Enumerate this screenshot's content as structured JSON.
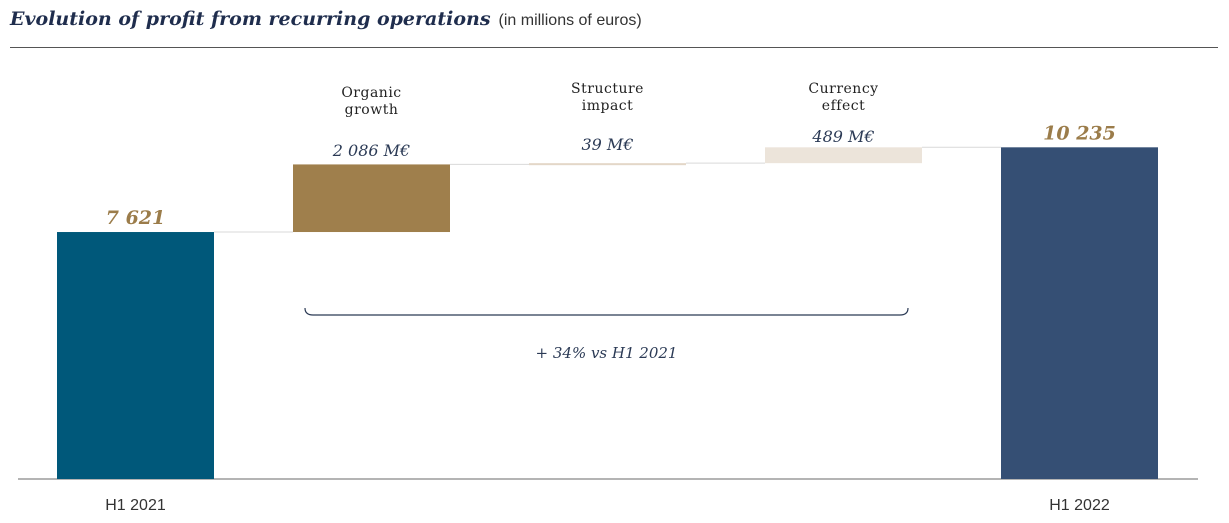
{
  "header": {
    "title": "Evolution of profit from recurring operations",
    "subtitle": "(in millions of euros)"
  },
  "colors": {
    "start_bar": "#00587a",
    "organic": "#9f7f4c",
    "structure": "#e3d7c8",
    "currency": "#ece4da",
    "end_bar": "#354f74",
    "total_label": "#9b7c4a",
    "step_label": "#2b3a55"
  },
  "chart_data": {
    "type": "waterfall",
    "unit": "millions of euros",
    "ylim": [
      0,
      10800
    ],
    "start": {
      "label": "H1 2021",
      "value": 7621,
      "value_label": "7 621"
    },
    "steps": [
      {
        "name": "Organic growth",
        "lines": [
          "Organic",
          "growth"
        ],
        "value": 2086,
        "value_label": "2 086 M€"
      },
      {
        "name": "Structure impact",
        "lines": [
          "Structure",
          "impact"
        ],
        "value": 39,
        "value_label": "39 M€"
      },
      {
        "name": "Currency effect",
        "lines": [
          "Currency",
          "effect"
        ],
        "value": 489,
        "value_label": "489 M€"
      }
    ],
    "end": {
      "label": "H1 2022",
      "value": 10235,
      "value_label": "10 235"
    },
    "annotation": "+ 34% vs H1 2021"
  }
}
